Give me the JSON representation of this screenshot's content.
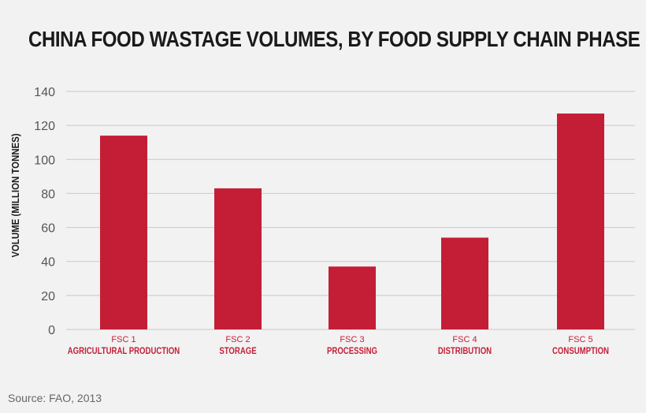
{
  "chart_data": {
    "type": "bar",
    "title": "CHINA FOOD WASTAGE VOLUMES, BY FOOD SUPPLY CHAIN PHASE",
    "ylabel": "VOLUME (MILLION TONNES)",
    "xlabel": "",
    "ylim": [
      0,
      140
    ],
    "yticks": [
      0,
      20,
      40,
      60,
      80,
      100,
      120,
      140
    ],
    "grid": true,
    "categories": [
      {
        "code": "FSC 1",
        "label": "AGRICULTURAL PRODUCTION"
      },
      {
        "code": "FSC 2",
        "label": "STORAGE"
      },
      {
        "code": "FSC 3",
        "label": "PROCESSING"
      },
      {
        "code": "FSC 4",
        "label": "DISTRIBUTION"
      },
      {
        "code": "FSC 5",
        "label": "CONSUMPTION"
      }
    ],
    "values": [
      114,
      83,
      37,
      54,
      127
    ],
    "bar_color": "#c41e36",
    "grid_color": "#c8c8c8"
  },
  "source": "Source: FAO, 2013"
}
